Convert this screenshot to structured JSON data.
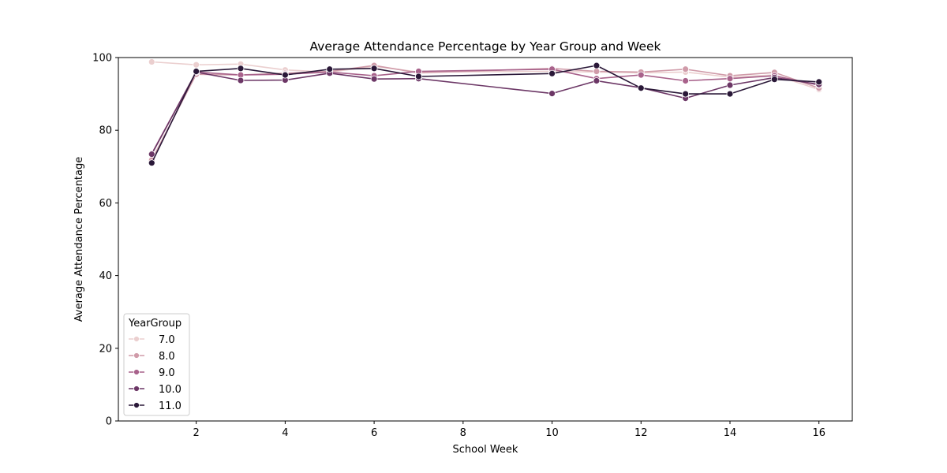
{
  "chart_data": {
    "type": "line",
    "title": "Average Attendance Percentage by Year Group and Week",
    "xlabel": "School Week",
    "ylabel": "Average Attendance Percentage",
    "xlim": [
      0.25,
      16.75
    ],
    "ylim": [
      0,
      100
    ],
    "xticks": [
      2,
      4,
      6,
      8,
      10,
      12,
      14,
      16
    ],
    "yticks": [
      0,
      20,
      40,
      60,
      80,
      100
    ],
    "grid": false,
    "legend": {
      "title": "YearGroup",
      "placement": "lower-left"
    },
    "x": [
      1,
      2,
      3,
      4,
      5,
      6,
      7,
      10,
      11,
      12,
      13,
      14,
      15,
      16
    ],
    "series": [
      {
        "name": "7.0",
        "color": "#ebcfcf",
        "values": [
          98.8,
          98.0,
          98.2,
          96.6,
          96.0,
          97.6,
          96.0,
          96.2,
          96.0,
          95.8,
          96.0,
          94.6,
          95.2,
          91.2
        ]
      },
      {
        "name": "8.0",
        "color": "#d09ba9",
        "values": [
          71.8,
          95.4,
          95.2,
          95.7,
          96.2,
          97.8,
          95.8,
          97.0,
          96.2,
          96.0,
          96.8,
          95.0,
          95.9,
          91.6
        ]
      },
      {
        "name": "9.0",
        "color": "#a8628b",
        "values": [
          73.6,
          96.0,
          95.2,
          95.4,
          96.0,
          95.0,
          96.2,
          96.8,
          94.2,
          95.2,
          93.6,
          94.2,
          95.0,
          92.4
        ]
      },
      {
        "name": "10.0",
        "color": "#6c3766",
        "values": [
          73.4,
          96.0,
          93.7,
          93.8,
          95.7,
          94.1,
          94.2,
          90.1,
          93.6,
          91.7,
          88.8,
          92.4,
          94.5,
          92.6
        ]
      },
      {
        "name": "11.0",
        "color": "#2a1838",
        "values": [
          71.0,
          96.2,
          97.0,
          95.2,
          96.8,
          97.0,
          94.8,
          95.6,
          97.8,
          91.6,
          90.0,
          90.0,
          94.0,
          93.3
        ]
      }
    ]
  }
}
